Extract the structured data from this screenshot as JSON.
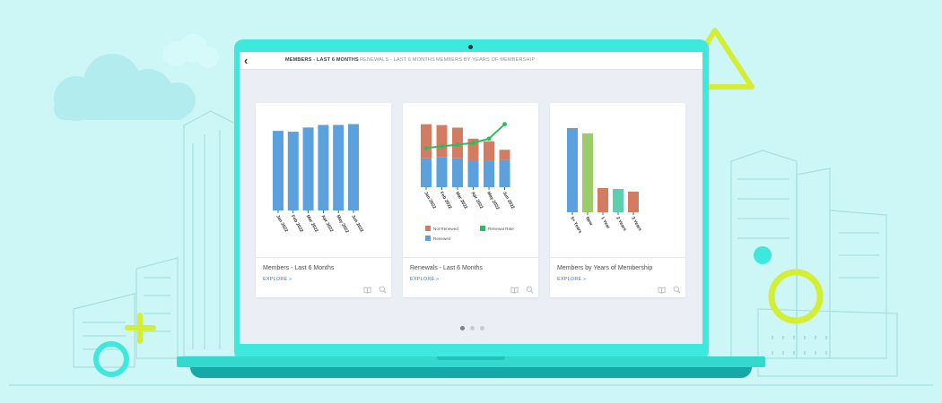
{
  "header": {
    "tabs": [
      {
        "label": "MEMBERS - LAST 6 MONTHS",
        "active": true
      },
      {
        "label": "RENEWALS - LAST 6 MONTHS",
        "active": false
      },
      {
        "label": "MEMBERS BY YEARS OF MEMBERSHIP",
        "active": false
      }
    ]
  },
  "cards": [
    {
      "title": "Members - Last 6 Months",
      "explore_label": "EXPLORE »"
    },
    {
      "title": "Renewals - Last 6 Months",
      "explore_label": "EXPLORE »"
    },
    {
      "title": "Members by Years of Membership",
      "explore_label": "EXPLORE »"
    }
  ],
  "pagination": {
    "pages": 3,
    "current": 1
  },
  "colors": {
    "blue": "#5aa1dd",
    "salmon": "#d47c62",
    "green_line": "#2dbd5e",
    "light_green": "#9ccc6a",
    "teal": "#5ccfae",
    "link": "#2f7fd4",
    "laptop": "#3ee8dc",
    "background": "#cdf7f6"
  },
  "chart_data": [
    {
      "type": "bar",
      "categories": [
        "Jan 2022",
        "Feb 2022",
        "Mar 2022",
        "Apr 2022",
        "May 2022",
        "Jun 2022"
      ],
      "values": [
        94,
        93,
        98,
        101,
        101,
        102
      ],
      "ylim": [
        0,
        110
      ],
      "grid": false,
      "xlabel": "",
      "ylabel": ""
    },
    {
      "type": "bar",
      "stacked": true,
      "categories": [
        "Jan 2022",
        "Feb 2022",
        "Mar 2022",
        "Apr 2022",
        "May 2022",
        "Jun 2022"
      ],
      "series": [
        {
          "name": "Renewed",
          "values": [
            34,
            35,
            34,
            31,
            31,
            32
          ]
        },
        {
          "name": "Not Renewed",
          "values": [
            40,
            38,
            36,
            26,
            23,
            12
          ]
        },
        {
          "name": "Renewal Rate",
          "type": "line",
          "values": [
            46,
            48,
            50,
            52,
            57,
            74
          ]
        }
      ],
      "ylim": [
        0,
        80
      ],
      "legend_position": "bottom",
      "grid": false
    },
    {
      "type": "bar",
      "categories": [
        "5+ Years",
        "New",
        "1 Year",
        "2 Years",
        "3 Years"
      ],
      "values": [
        94,
        88,
        27,
        26,
        23
      ],
      "ylim": [
        0,
        100
      ],
      "grid": false
    }
  ]
}
